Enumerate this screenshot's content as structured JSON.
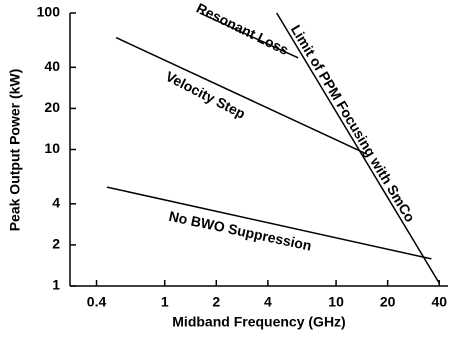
{
  "chart_data": {
    "type": "line",
    "x_label": "Midband Frequency (GHz)",
    "y_label": "Peak Output Power (kW)",
    "x_log": true,
    "y_log": true,
    "xlim": [
      0.28,
      45
    ],
    "ylim": [
      1,
      100
    ],
    "xticks": [
      0.4,
      1,
      2,
      4,
      10,
      20,
      40
    ],
    "yticks": [
      1,
      2,
      4,
      10,
      20,
      40,
      100
    ],
    "series": [
      {
        "name": "Resonant Loss",
        "color": "#000000",
        "x": [
          1.6,
          6
        ],
        "values": [
          100,
          47
        ]
      },
      {
        "name": "Limit of PPM Focusing with SmCo",
        "color": "#000000",
        "x": [
          4.5,
          40
        ],
        "values": [
          100,
          1.05
        ]
      },
      {
        "name": "Velocity Step",
        "color": "#000000",
        "x": [
          0.52,
          15
        ],
        "values": [
          66,
          9.3
        ]
      },
      {
        "name": "No BWO Suppression",
        "color": "#000000",
        "x": [
          0.46,
          36
        ],
        "values": [
          5.3,
          1.58
        ]
      }
    ]
  }
}
